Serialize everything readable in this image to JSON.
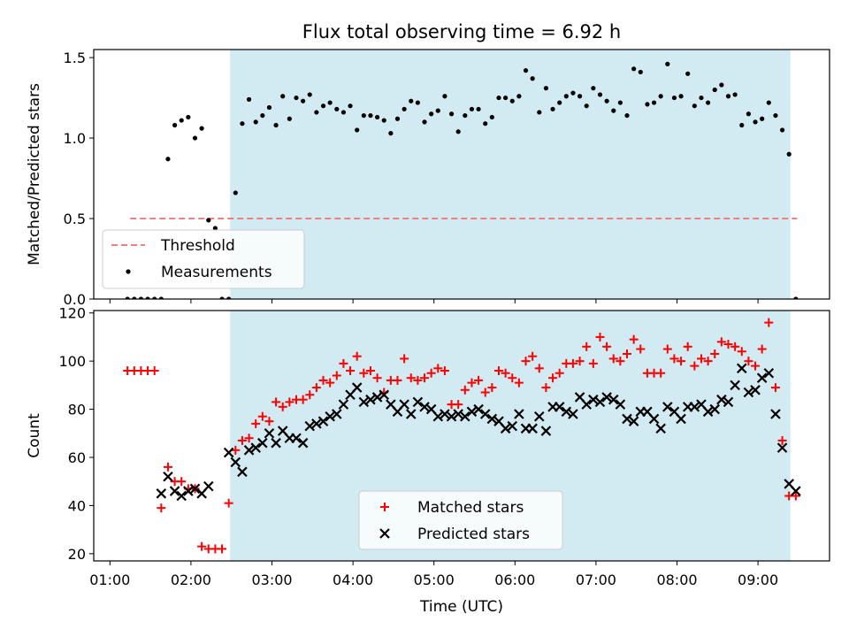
{
  "figure": {
    "title": "Flux total observing time = 6.92 h"
  },
  "chart_data": [
    {
      "type": "scatter",
      "ylabel": "Matched/Predicted stars",
      "ylim": [
        0,
        1.55
      ],
      "xlim": [
        "00:48",
        "09:53"
      ],
      "yticks": [
        0.0,
        0.5,
        1.0,
        1.5
      ],
      "ytick_labels": [
        "0.0",
        "0.5",
        "1.0",
        "1.5"
      ],
      "shaded_span": {
        "start": "02:29",
        "end": "09:24",
        "color": "#add8e6"
      },
      "threshold": {
        "value": 0.5,
        "start": "01:15",
        "end": "09:29",
        "color": "#f08080",
        "style": "dashed"
      },
      "legend": {
        "location": "lower-left",
        "entries": [
          "Threshold",
          "Measurements"
        ]
      },
      "series": [
        {
          "name": "Measurements",
          "marker": "dot",
          "color": "#000000",
          "x": [
            "01:13",
            "01:18",
            "01:23",
            "01:28",
            "01:33",
            "01:38",
            "01:43",
            "01:48",
            "01:53",
            "01:58",
            "02:03",
            "02:08",
            "02:13",
            "02:18",
            "02:23",
            "02:28",
            "02:33",
            "02:38",
            "02:43",
            "02:48",
            "02:53",
            "02:58",
            "03:03",
            "03:08",
            "03:13",
            "03:18",
            "03:23",
            "03:28",
            "03:33",
            "03:38",
            "03:43",
            "03:48",
            "03:53",
            "03:58",
            "04:03",
            "04:08",
            "04:13",
            "04:18",
            "04:23",
            "04:28",
            "04:33",
            "04:38",
            "04:43",
            "04:48",
            "04:53",
            "04:58",
            "05:03",
            "05:08",
            "05:13",
            "05:18",
            "05:23",
            "05:28",
            "05:33",
            "05:38",
            "05:43",
            "05:48",
            "05:53",
            "05:58",
            "06:03",
            "06:08",
            "06:13",
            "06:18",
            "06:23",
            "06:28",
            "06:33",
            "06:38",
            "06:43",
            "06:48",
            "06:53",
            "06:58",
            "07:03",
            "07:08",
            "07:13",
            "07:18",
            "07:23",
            "07:28",
            "07:33",
            "07:38",
            "07:43",
            "07:48",
            "07:53",
            "07:58",
            "08:03",
            "08:08",
            "08:13",
            "08:18",
            "08:23",
            "08:28",
            "08:33",
            "08:38",
            "08:43",
            "08:48",
            "08:53",
            "08:58",
            "09:03",
            "09:08",
            "09:13",
            "09:18",
            "09:23",
            "09:28"
          ],
          "y": [
            0.0,
            0.0,
            0.0,
            0.0,
            0.0,
            0.0,
            0.87,
            1.08,
            1.11,
            1.13,
            1.0,
            1.06,
            0.49,
            0.44,
            0.0,
            0.0,
            0.66,
            1.09,
            1.24,
            1.1,
            1.14,
            1.19,
            1.08,
            1.26,
            1.12,
            1.25,
            1.23,
            1.27,
            1.16,
            1.2,
            1.22,
            1.18,
            1.16,
            1.2,
            1.05,
            1.14,
            1.14,
            1.13,
            1.11,
            1.03,
            1.12,
            1.18,
            1.23,
            1.22,
            1.1,
            1.15,
            1.17,
            1.26,
            1.15,
            1.04,
            1.14,
            1.18,
            1.18,
            1.09,
            1.13,
            1.25,
            1.25,
            1.23,
            1.26,
            1.42,
            1.37,
            1.16,
            1.31,
            1.18,
            1.22,
            1.26,
            1.28,
            1.26,
            1.2,
            1.31,
            1.27,
            1.23,
            1.17,
            1.22,
            1.14,
            1.43,
            1.41,
            1.21,
            1.22,
            1.26,
            1.46,
            1.25,
            1.26,
            1.4,
            1.2,
            1.25,
            1.22,
            1.3,
            1.33,
            1.26,
            1.27,
            1.08,
            1.15,
            1.1,
            1.12,
            1.22,
            1.14,
            1.05,
            0.9,
            0.0
          ]
        }
      ]
    },
    {
      "type": "scatter",
      "xlabel": "Time (UTC)",
      "ylabel": "Count",
      "ylim": [
        17,
        121
      ],
      "xlim": [
        "00:48",
        "09:53"
      ],
      "xticks": [
        "01:00",
        "02:00",
        "03:00",
        "04:00",
        "05:00",
        "06:00",
        "07:00",
        "08:00",
        "09:00"
      ],
      "yticks": [
        20,
        40,
        60,
        80,
        100,
        120
      ],
      "ytick_labels": [
        "20",
        "40",
        "60",
        "80",
        "100",
        "120"
      ],
      "shaded_span": {
        "start": "02:29",
        "end": "09:24",
        "color": "#add8e6"
      },
      "legend": {
        "location": "lower-center",
        "entries": [
          "Matched stars",
          "Predicted stars"
        ]
      },
      "series": [
        {
          "name": "Matched stars",
          "marker": "plus",
          "color": "#ff0000",
          "x": [
            "01:13",
            "01:18",
            "01:23",
            "01:28",
            "01:33",
            "01:38",
            "01:43",
            "01:48",
            "01:53",
            "01:58",
            "02:03",
            "02:08",
            "02:13",
            "02:18",
            "02:23",
            "02:28",
            "02:33",
            "02:38",
            "02:43",
            "02:48",
            "02:53",
            "02:58",
            "03:03",
            "03:08",
            "03:13",
            "03:18",
            "03:23",
            "03:28",
            "03:33",
            "03:38",
            "03:43",
            "03:48",
            "03:53",
            "03:58",
            "04:03",
            "04:08",
            "04:13",
            "04:18",
            "04:23",
            "04:28",
            "04:33",
            "04:38",
            "04:43",
            "04:48",
            "04:53",
            "04:58",
            "05:03",
            "05:08",
            "05:13",
            "05:18",
            "05:23",
            "05:28",
            "05:33",
            "05:38",
            "05:43",
            "05:48",
            "05:53",
            "05:58",
            "06:03",
            "06:08",
            "06:13",
            "06:18",
            "06:23",
            "06:28",
            "06:33",
            "06:38",
            "06:43",
            "06:48",
            "06:53",
            "06:58",
            "07:03",
            "07:08",
            "07:13",
            "07:18",
            "07:23",
            "07:28",
            "07:33",
            "07:38",
            "07:43",
            "07:48",
            "07:53",
            "07:58",
            "08:03",
            "08:08",
            "08:13",
            "08:18",
            "08:23",
            "08:28",
            "08:33",
            "08:38",
            "08:43",
            "08:48",
            "08:53",
            "08:58",
            "09:03",
            "09:08",
            "09:13",
            "09:18",
            "09:23",
            "09:28"
          ],
          "y": [
            96,
            96,
            96,
            96,
            96,
            39,
            56,
            50,
            50,
            47,
            47,
            23,
            22,
            22,
            22,
            41,
            63,
            67,
            68,
            74,
            77,
            75,
            83,
            81,
            83,
            84,
            84,
            86,
            89,
            92,
            91,
            94,
            99,
            96,
            102,
            95,
            96,
            93,
            87,
            92,
            92,
            101,
            93,
            92,
            93,
            95,
            97,
            96,
            82,
            82,
            88,
            91,
            92,
            87,
            89,
            96,
            95,
            93,
            91,
            100,
            102,
            97,
            89,
            93,
            95,
            99,
            99,
            100,
            106,
            99,
            110,
            106,
            101,
            100,
            103,
            109,
            105,
            95,
            95,
            95,
            105,
            101,
            100,
            106,
            98,
            101,
            100,
            103,
            108,
            107,
            106,
            104,
            100,
            98,
            105,
            116,
            89,
            67,
            44,
            44
          ]
        },
        {
          "name": "Predicted stars",
          "marker": "x",
          "color": "#000000",
          "x": [
            "01:38",
            "01:43",
            "01:48",
            "01:53",
            "01:58",
            "02:03",
            "02:08",
            "02:13",
            "02:28",
            "02:33",
            "02:38",
            "02:43",
            "02:48",
            "02:53",
            "02:58",
            "03:03",
            "03:08",
            "03:13",
            "03:18",
            "03:23",
            "03:28",
            "03:33",
            "03:38",
            "03:43",
            "03:48",
            "03:53",
            "03:58",
            "04:03",
            "04:08",
            "04:13",
            "04:18",
            "04:23",
            "04:28",
            "04:33",
            "04:38",
            "04:43",
            "04:48",
            "04:53",
            "04:58",
            "05:03",
            "05:08",
            "05:13",
            "05:18",
            "05:23",
            "05:28",
            "05:33",
            "05:38",
            "05:43",
            "05:48",
            "05:53",
            "05:58",
            "06:03",
            "06:08",
            "06:13",
            "06:18",
            "06:23",
            "06:28",
            "06:33",
            "06:38",
            "06:43",
            "06:48",
            "06:53",
            "06:58",
            "07:03",
            "07:08",
            "07:13",
            "07:18",
            "07:23",
            "07:28",
            "07:33",
            "07:38",
            "07:43",
            "07:48",
            "07:53",
            "07:58",
            "08:03",
            "08:08",
            "08:13",
            "08:18",
            "08:23",
            "08:28",
            "08:33",
            "08:38",
            "08:43",
            "08:48",
            "08:53",
            "08:58",
            "09:03",
            "09:08",
            "09:13",
            "09:18",
            "09:23",
            "09:28"
          ],
          "y": [
            45,
            52,
            46,
            44,
            46,
            47,
            45,
            48,
            62,
            58,
            54,
            63,
            64,
            66,
            70,
            66,
            71,
            68,
            68,
            66,
            73,
            74,
            75,
            77,
            78,
            82,
            86,
            89,
            83,
            84,
            85,
            86,
            82,
            79,
            82,
            78,
            83,
            81,
            80,
            77,
            78,
            77,
            78,
            77,
            79,
            80,
            78,
            76,
            75,
            72,
            73,
            78,
            72,
            72,
            77,
            71,
            81,
            81,
            79,
            78,
            85,
            82,
            84,
            83,
            85,
            84,
            82,
            76,
            75,
            79,
            79,
            76,
            72,
            81,
            79,
            76,
            81,
            81,
            82,
            79,
            80,
            84,
            83,
            90,
            97,
            87,
            88,
            93,
            95,
            78,
            64,
            49,
            46
          ]
        }
      ]
    }
  ]
}
